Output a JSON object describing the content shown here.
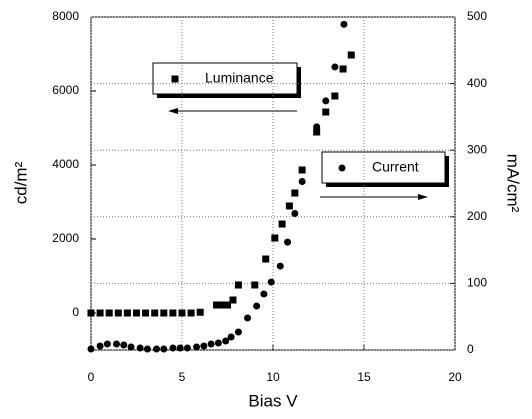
{
  "chart_data": {
    "type": "scatter",
    "xlabel": "Bias V",
    "ylabel": "cd/m²",
    "y2label": "mA/cm²",
    "xlim": [
      0,
      20
    ],
    "xticks": [
      0,
      5,
      10,
      15,
      20
    ],
    "ylim": [
      -1000,
      8000
    ],
    "yticks": [
      0,
      2000,
      4000,
      6000,
      8000
    ],
    "y2lim": [
      0,
      500
    ],
    "y2ticks": [
      0,
      100,
      200,
      300,
      400,
      500
    ],
    "grid": true,
    "series": [
      {
        "name": "Luminance",
        "color": "#000000",
        "marker": "square",
        "x": [
          0,
          0.5,
          1,
          1.5,
          2,
          2.5,
          3,
          3.5,
          4,
          4.5,
          5,
          5.5,
          6,
          6.9,
          7.2,
          7.5,
          7.8,
          8.1,
          9,
          9.6,
          10.1,
          10.5,
          10.9,
          11.2,
          11.6,
          12.4,
          12.9,
          13.4,
          13.85,
          14.3
        ],
        "values": [
          0,
          0,
          0,
          0,
          0,
          0,
          0,
          0,
          0,
          0,
          0,
          0,
          20,
          216,
          216,
          216,
          351,
          757,
          757,
          1459,
          2027,
          2405,
          2892,
          3243,
          3865,
          4892,
          5432,
          5865,
          6595,
          6973
        ]
      },
      {
        "name": "Current",
        "color": "#000000",
        "marker": "circle",
        "axis": "y2",
        "x": [
          0,
          0.5,
          0.9,
          1.4,
          1.8,
          2.2,
          2.7,
          3.1,
          3.6,
          4,
          4.5,
          4.9,
          5.3,
          5.8,
          6.2,
          6.6,
          7,
          7.4,
          7.7,
          8.1,
          8.6,
          9.1,
          9.5,
          9.9,
          10.4,
          10.8,
          11.2,
          11.6,
          12.4,
          12.9,
          13.4,
          13.9
        ],
        "values": [
          1.5,
          6,
          9,
          9,
          7.5,
          4.5,
          3,
          1.5,
          1.5,
          1.5,
          3,
          3,
          3,
          4.5,
          6,
          9,
          10.5,
          13.5,
          19.5,
          27,
          48,
          66,
          84,
          102,
          126,
          162,
          205,
          253,
          335,
          374,
          425,
          489
        ]
      }
    ]
  }
}
